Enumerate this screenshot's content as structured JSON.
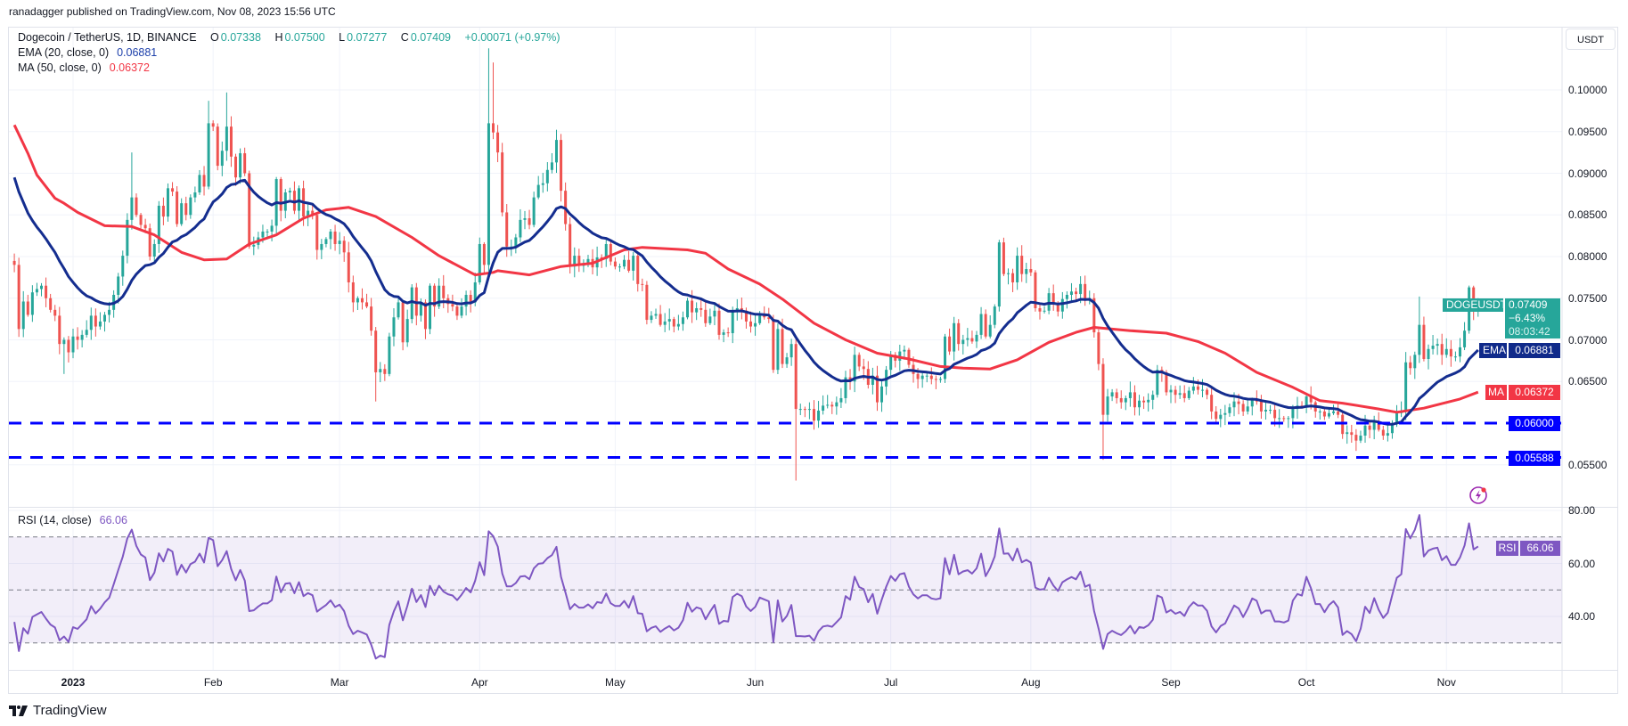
{
  "header": {
    "published": "ranadagger published on TradingView.com, Nov 08, 2023 15:56 UTC"
  },
  "legend": {
    "symbol": "Dogecoin / TetherUS, 1D, BINANCE",
    "o_label": "O",
    "o": "0.07338",
    "h_label": "H",
    "h": "0.07500",
    "l_label": "L",
    "l": "0.07277",
    "c_label": "C",
    "c": "0.07409",
    "change": "+0.00071 (+0.97%)",
    "ema_label": "EMA (20, close, 0)",
    "ema": "0.06881",
    "ma_label": "MA (50, close, 0)",
    "ma": "0.06372",
    "rsi_label": "RSI (14, close)",
    "rsi": "66.06"
  },
  "axis": {
    "currency": "USDT",
    "price_ticks": [
      "0.10000",
      "0.09500",
      "0.09000",
      "0.08500",
      "0.08000",
      "0.07500",
      "0.07000",
      "0.06500",
      "0.05500"
    ],
    "rsi_ticks": [
      "80.00",
      "60.00",
      "40.00"
    ],
    "time_ticks": [
      {
        "label": "2023",
        "date": "2023-01-01",
        "bold": true
      },
      {
        "label": "Feb",
        "date": "2023-02-01"
      },
      {
        "label": "Mar",
        "date": "2023-03-01"
      },
      {
        "label": "Apr",
        "date": "2023-04-01"
      },
      {
        "label": "May",
        "date": "2023-05-01"
      },
      {
        "label": "Jun",
        "date": "2023-06-01"
      },
      {
        "label": "Jul",
        "date": "2023-07-01"
      },
      {
        "label": "Aug",
        "date": "2023-08-01"
      },
      {
        "label": "Sep",
        "date": "2023-09-01"
      },
      {
        "label": "Oct",
        "date": "2023-10-01"
      },
      {
        "label": "Nov",
        "date": "2023-11-01"
      }
    ]
  },
  "badges": {
    "symbol": "DOGEUSDT",
    "price": "0.07409",
    "change_pct": "−6.43%",
    "countdown": "08:03:42",
    "ema_label": "EMA",
    "ema_value": "0.06881",
    "ma_label": "MA",
    "ma_value": "0.06372",
    "support1": "0.06000",
    "support2": "0.05588",
    "rsi_label": "RSI",
    "rsi_value": "66.06"
  },
  "colors": {
    "up": "#26a69a",
    "down": "#ef5350",
    "ema": "#142d8f",
    "ma": "#f23645",
    "support": "#0000ff",
    "rsi": "#7e57c2",
    "grid": "#f0f3fa"
  },
  "icons": {
    "alert": "lightning-icon",
    "brand": "tradingview-logo-icon"
  },
  "footer": {
    "brand": "TradingView"
  },
  "chart_data": {
    "type": "candlestick",
    "title": "Dogecoin / TetherUS, 1D, BINANCE",
    "first_date": "2022-12-19",
    "last_date": "2023-11-08",
    "ylim": [
      0.0515,
      0.1065
    ],
    "closes": [
      0.079,
      0.0713,
      0.0746,
      0.073,
      0.0757,
      0.0761,
      0.0765,
      0.075,
      0.0736,
      0.0729,
      0.0695,
      0.07,
      0.0685,
      0.0704,
      0.07,
      0.0706,
      0.0712,
      0.0729,
      0.0716,
      0.0722,
      0.073,
      0.0736,
      0.0754,
      0.0776,
      0.0801,
      0.0844,
      0.0871,
      0.085,
      0.0838,
      0.0834,
      0.08,
      0.0815,
      0.0861,
      0.0848,
      0.0882,
      0.0878,
      0.0839,
      0.0864,
      0.085,
      0.0871,
      0.0877,
      0.0898,
      0.0884,
      0.096,
      0.0956,
      0.0909,
      0.0927,
      0.0956,
      0.092,
      0.0895,
      0.0924,
      0.09,
      0.0812,
      0.0814,
      0.0823,
      0.083,
      0.083,
      0.0837,
      0.0893,
      0.0855,
      0.0877,
      0.0879,
      0.0855,
      0.0882,
      0.0848,
      0.0855,
      0.085,
      0.0808,
      0.0815,
      0.0821,
      0.083,
      0.0815,
      0.0819,
      0.0805,
      0.0769,
      0.0745,
      0.075,
      0.0745,
      0.074,
      0.0711,
      0.0661,
      0.0665,
      0.0659,
      0.0704,
      0.0727,
      0.0745,
      0.0697,
      0.0725,
      0.0763,
      0.0729,
      0.0745,
      0.0713,
      0.0765,
      0.074,
      0.0765,
      0.075,
      0.0743,
      0.074,
      0.0729,
      0.074,
      0.0754,
      0.0745,
      0.0769,
      0.0815,
      0.079,
      0.096,
      0.0949,
      0.0925,
      0.0853,
      0.0812,
      0.0812,
      0.0823,
      0.0844,
      0.0846,
      0.0838,
      0.0871,
      0.0886,
      0.0888,
      0.0904,
      0.0913,
      0.094,
      0.0879,
      0.0839,
      0.0788,
      0.0801,
      0.079,
      0.079,
      0.0797,
      0.0787,
      0.0799,
      0.0797,
      0.0815,
      0.0794,
      0.0788,
      0.0788,
      0.0796,
      0.0783,
      0.0801,
      0.0767,
      0.0766,
      0.0724,
      0.0729,
      0.0731,
      0.0718,
      0.0722,
      0.0725,
      0.0716,
      0.0719,
      0.0727,
      0.0747,
      0.0733,
      0.0738,
      0.0736,
      0.072,
      0.0728,
      0.0735,
      0.0706,
      0.0709,
      0.0708,
      0.0734,
      0.0738,
      0.0735,
      0.0722,
      0.0716,
      0.072,
      0.0729,
      0.0727,
      0.0725,
      0.0664,
      0.0713,
      0.0671,
      0.0679,
      0.0695,
      0.0617,
      0.0617,
      0.0616,
      0.0617,
      0.0603,
      0.0615,
      0.0621,
      0.0622,
      0.062,
      0.0625,
      0.063,
      0.0655,
      0.065,
      0.0682,
      0.0668,
      0.0665,
      0.0646,
      0.0657,
      0.0625,
      0.0644,
      0.0664,
      0.0682,
      0.0675,
      0.0686,
      0.0688,
      0.067,
      0.0659,
      0.0653,
      0.0657,
      0.0657,
      0.0653,
      0.0652,
      0.0653,
      0.0704,
      0.0686,
      0.072,
      0.0695,
      0.07,
      0.0702,
      0.0698,
      0.0706,
      0.0731,
      0.0704,
      0.0718,
      0.074,
      0.0817,
      0.0779,
      0.078,
      0.0769,
      0.0801,
      0.0779,
      0.0785,
      0.0781,
      0.0738,
      0.0734,
      0.0735,
      0.0756,
      0.0743,
      0.0734,
      0.0749,
      0.0754,
      0.0758,
      0.0755,
      0.0767,
      0.0747,
      0.075,
      0.0709,
      0.0671,
      0.061,
      0.0632,
      0.0637,
      0.063,
      0.0625,
      0.063,
      0.0637,
      0.0619,
      0.0627,
      0.0625,
      0.0628,
      0.0634,
      0.0664,
      0.0661,
      0.0637,
      0.064,
      0.0634,
      0.0636,
      0.063,
      0.0639,
      0.0644,
      0.064,
      0.064,
      0.0634,
      0.0614,
      0.0605,
      0.061,
      0.0612,
      0.0619,
      0.0626,
      0.0623,
      0.0614,
      0.062,
      0.0628,
      0.0626,
      0.0614,
      0.0616,
      0.0616,
      0.0606,
      0.0606,
      0.0605,
      0.0606,
      0.0617,
      0.0621,
      0.062,
      0.0632,
      0.0625,
      0.0614,
      0.0614,
      0.0608,
      0.0612,
      0.0614,
      0.061,
      0.0587,
      0.0589,
      0.0586,
      0.0579,
      0.0585,
      0.0597,
      0.0592,
      0.0601,
      0.0592,
      0.0585,
      0.0588,
      0.0599,
      0.0612,
      0.0615,
      0.0673,
      0.0666,
      0.0682,
      0.0718,
      0.0677,
      0.0689,
      0.0693,
      0.0695,
      0.0682,
      0.0689,
      0.068,
      0.068,
      0.0691,
      0.0711,
      0.0763,
      0.0734,
      0.07409
    ],
    "last_candle": {
      "open": 0.07338,
      "high": 0.075,
      "low": 0.07277,
      "close": 0.07409
    },
    "wick_overrides": [
      {
        "date": "2022-12-30",
        "low": 0.0659
      },
      {
        "date": "2023-01-14",
        "high": 0.0925
      },
      {
        "date": "2023-01-31",
        "high": 0.0987
      },
      {
        "date": "2023-02-04",
        "high": 0.0997
      },
      {
        "date": "2023-03-09",
        "low": 0.0626
      },
      {
        "date": "2023-04-03",
        "high": 0.105
      },
      {
        "date": "2023-04-04",
        "high": 0.1033
      },
      {
        "date": "2023-06-10",
        "low": 0.0531
      },
      {
        "date": "2023-08-17",
        "low": 0.0556
      },
      {
        "date": "2023-10-26",
        "high": 0.0752
      },
      {
        "date": "2023-11-07",
        "high": 0.0765
      }
    ],
    "ema20": {
      "period": 20,
      "seed": 0.0895,
      "last": 0.06881
    },
    "ma50_points": [
      [
        "2022-12-19",
        0.0958
      ],
      [
        "2022-12-22",
        0.0924
      ],
      [
        "2022-12-24",
        0.0898
      ],
      [
        "2022-12-28",
        0.087
      ],
      [
        "2022-12-30",
        0.0864
      ],
      [
        "2023-01-02",
        0.0853
      ],
      [
        "2023-01-08",
        0.0837
      ],
      [
        "2023-01-14",
        0.0836
      ],
      [
        "2023-01-19",
        0.0826
      ],
      [
        "2023-01-25",
        0.0805
      ],
      [
        "2023-01-30",
        0.0796
      ],
      [
        "2023-02-04",
        0.0797
      ],
      [
        "2023-02-09",
        0.0815
      ],
      [
        "2023-02-15",
        0.0826
      ],
      [
        "2023-02-21",
        0.0846
      ],
      [
        "2023-02-26",
        0.0856
      ],
      [
        "2023-03-03",
        0.0859
      ],
      [
        "2023-03-09",
        0.0848
      ],
      [
        "2023-03-17",
        0.0823
      ],
      [
        "2023-03-23",
        0.0801
      ],
      [
        "2023-03-31",
        0.0778
      ],
      [
        "2023-04-04",
        0.0781
      ],
      [
        "2023-04-05",
        0.0783
      ],
      [
        "2023-04-12",
        0.0778
      ],
      [
        "2023-04-19",
        0.0788
      ],
      [
        "2023-04-26",
        0.0792
      ],
      [
        "2023-05-03",
        0.0808
      ],
      [
        "2023-05-07",
        0.0811
      ],
      [
        "2023-05-17",
        0.0808
      ],
      [
        "2023-05-21",
        0.0804
      ],
      [
        "2023-05-26",
        0.0785
      ],
      [
        "2023-06-02",
        0.0767
      ],
      [
        "2023-06-07",
        0.0749
      ],
      [
        "2023-06-14",
        0.072
      ],
      [
        "2023-06-21",
        0.07
      ],
      [
        "2023-06-28",
        0.0684
      ],
      [
        "2023-07-05",
        0.0677
      ],
      [
        "2023-07-12",
        0.0668
      ],
      [
        "2023-07-17",
        0.0666
      ],
      [
        "2023-07-23",
        0.0665
      ],
      [
        "2023-07-29",
        0.0676
      ],
      [
        "2023-08-05",
        0.0697
      ],
      [
        "2023-08-11",
        0.0709
      ],
      [
        "2023-08-15",
        0.0715
      ],
      [
        "2023-08-23",
        0.0711
      ],
      [
        "2023-08-31",
        0.0708
      ],
      [
        "2023-09-07",
        0.0698
      ],
      [
        "2023-09-13",
        0.0684
      ],
      [
        "2023-09-20",
        0.0661
      ],
      [
        "2023-09-28",
        0.0643
      ],
      [
        "2023-10-04",
        0.0627
      ],
      [
        "2023-10-09",
        0.0624
      ],
      [
        "2023-10-17",
        0.0617
      ],
      [
        "2023-10-21",
        0.0613
      ],
      [
        "2023-10-27",
        0.0618
      ],
      [
        "2023-11-04",
        0.0629
      ],
      [
        "2023-11-08",
        0.06372
      ]
    ],
    "support_levels": [
      0.06,
      0.05588
    ],
    "rsi": {
      "period": 14,
      "last": 66.06,
      "levels": [
        70,
        50,
        30
      ],
      "ylim": [
        20,
        85
      ]
    }
  }
}
